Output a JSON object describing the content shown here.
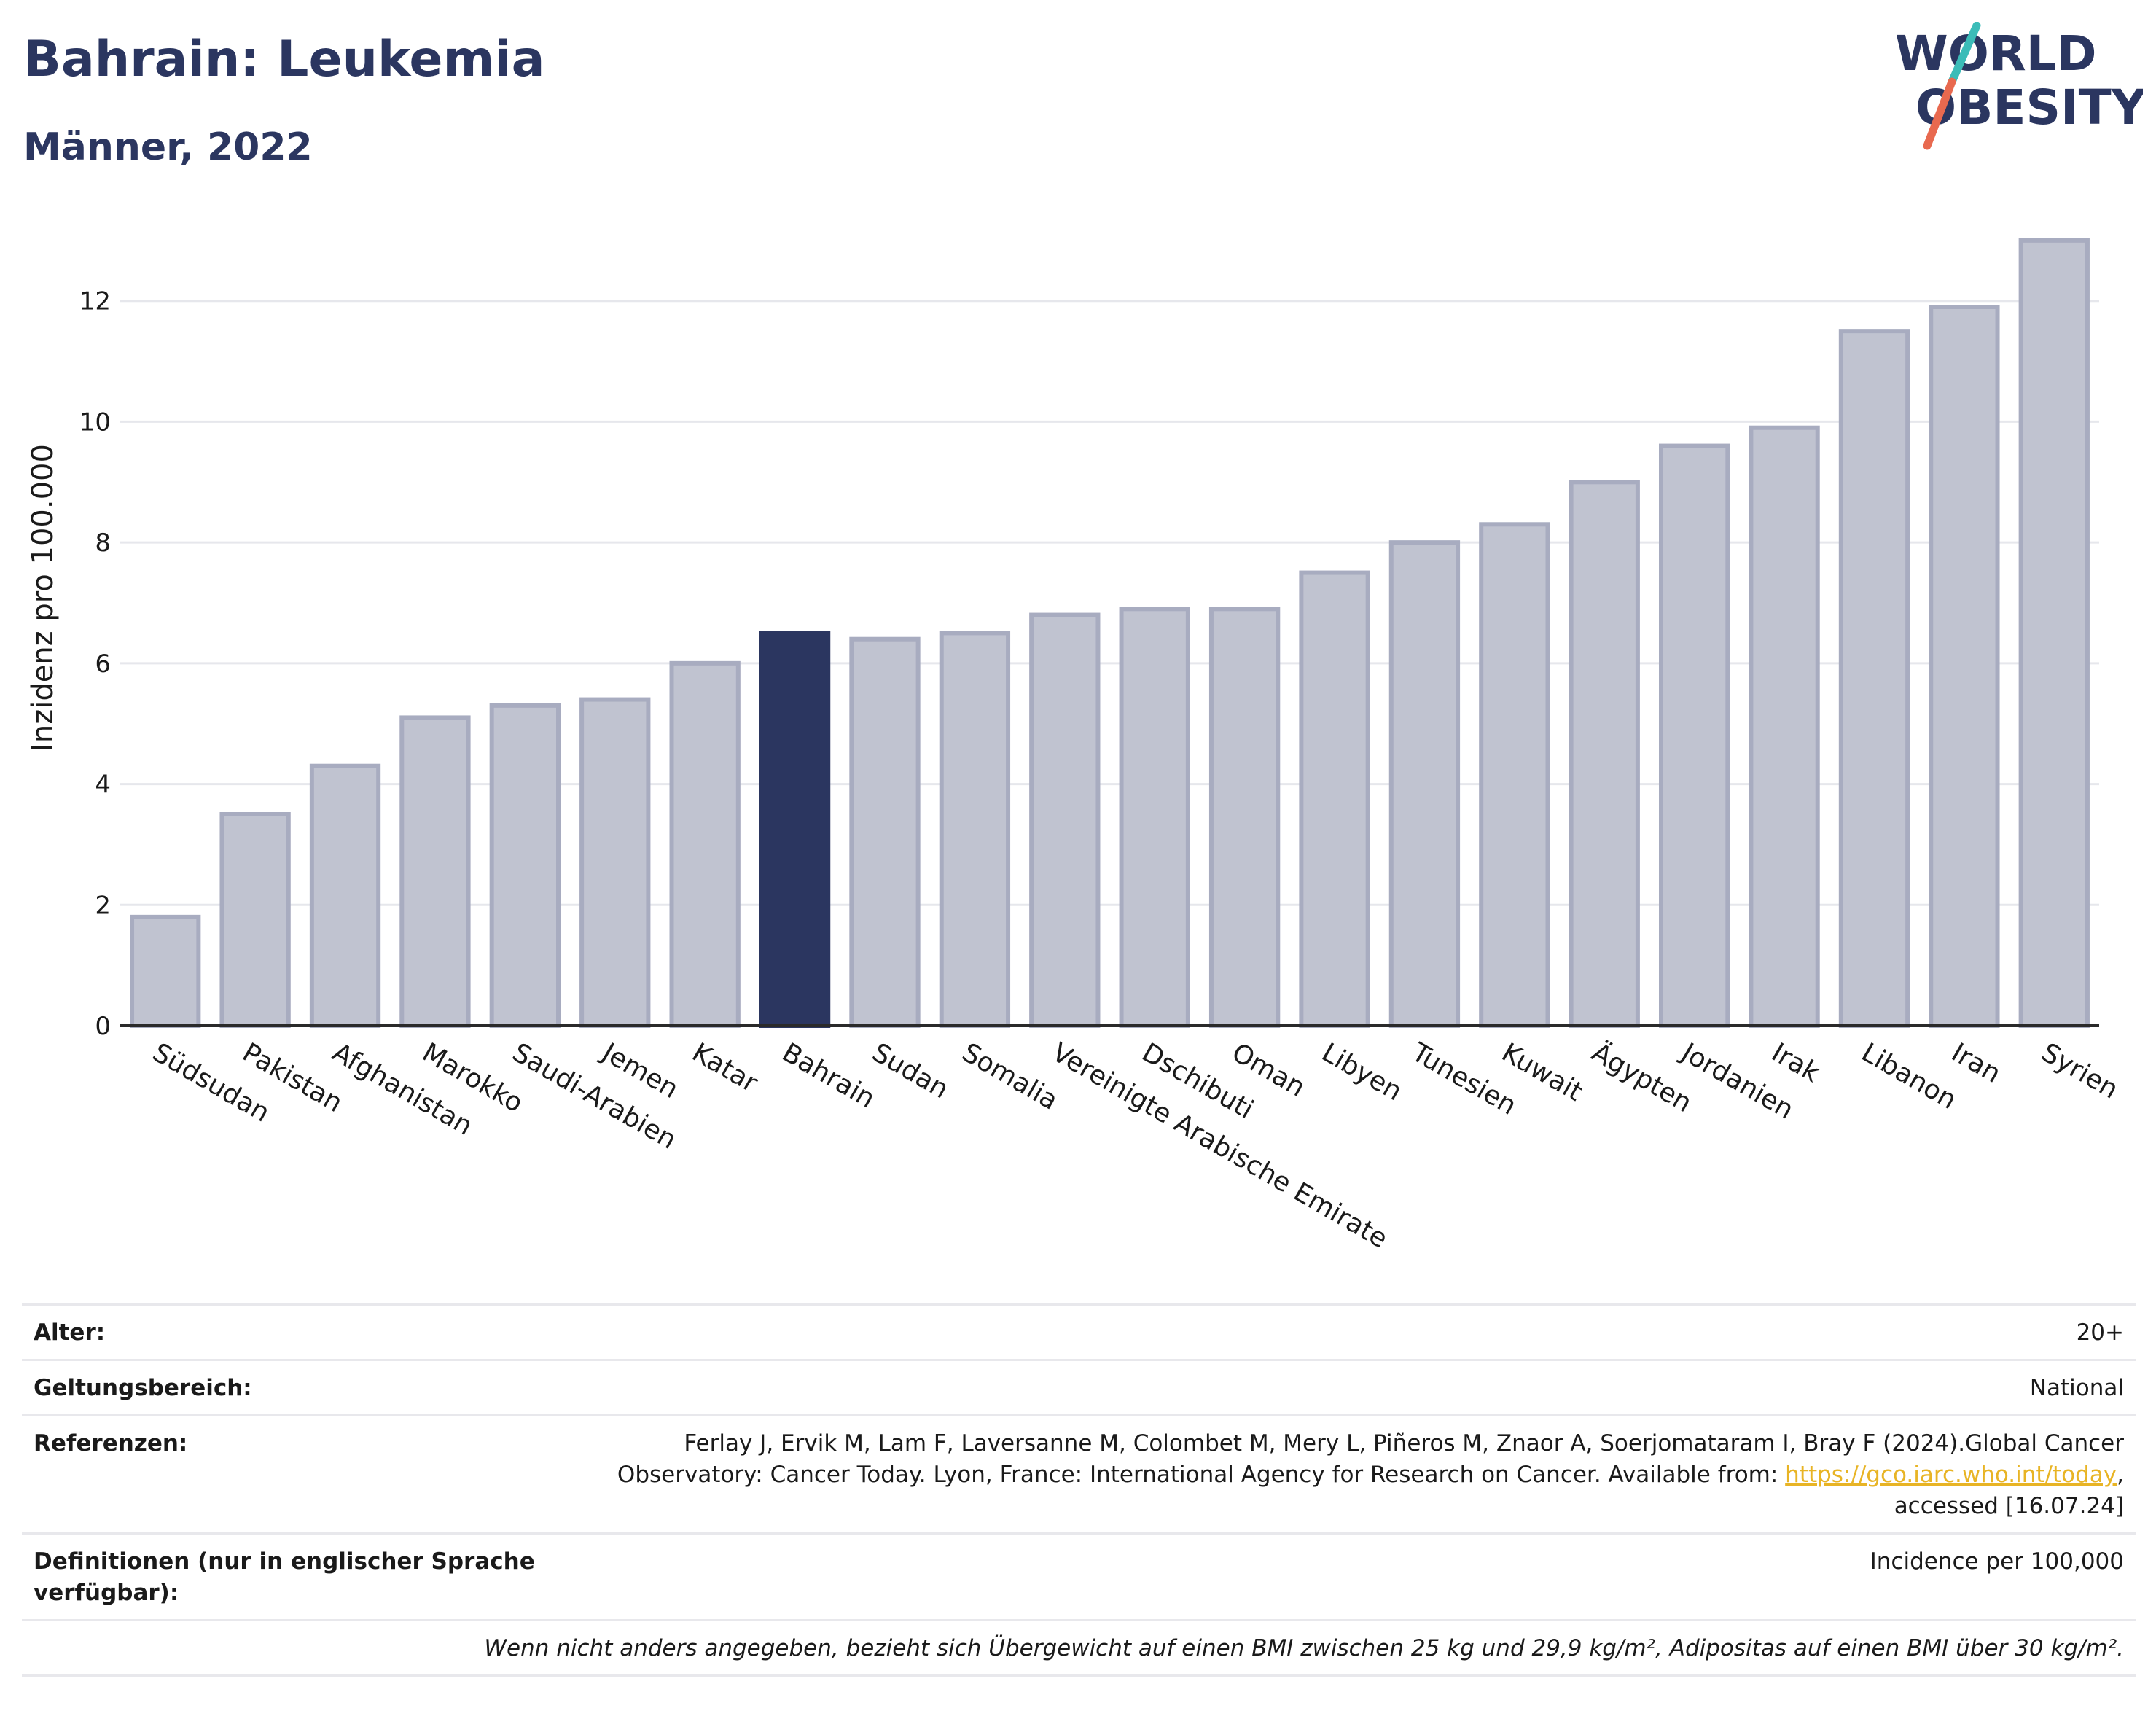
{
  "header": {
    "title": "Bahrain: Leukemia",
    "subtitle": "Männer, 2022"
  },
  "logo": {
    "line1": "WORLD",
    "line2": "OBESITY",
    "colors": {
      "text": "#2b3660",
      "slash_top": "#3bbcb8",
      "slash_bottom": "#e8694f"
    }
  },
  "colors": {
    "highlight": "#2b3660",
    "bar_fill": "#c0c3d0",
    "bar_stroke": "#a8acc0",
    "grid": "#e6e7ec",
    "axis": "#2a2a2a"
  },
  "chart_data": {
    "type": "bar",
    "title": "Bahrain: Leukemia",
    "subtitle": "Männer, 2022",
    "xlabel": "",
    "ylabel": "Inzidenz pro 100.000",
    "ylim": [
      0,
      13.3
    ],
    "yticks": [
      0,
      2,
      4,
      6,
      8,
      10,
      12
    ],
    "grid": true,
    "highlight": "Bahrain",
    "categories": [
      "Südsudan",
      "Pakistan",
      "Afghanistan",
      "Marokko",
      "Saudi-Arabien",
      "Jemen",
      "Katar",
      "Bahrain",
      "Sudan",
      "Somalia",
      "Vereinigte Arabische Emirate",
      "Dschibuti",
      "Oman",
      "Libyen",
      "Tunesien",
      "Kuwait",
      "Ägypten",
      "Jordanien",
      "Irak",
      "Libanon",
      "Iran",
      "Syrien"
    ],
    "values": [
      1.8,
      3.5,
      4.3,
      5.1,
      5.3,
      5.4,
      6.0,
      6.5,
      6.4,
      6.5,
      6.8,
      6.9,
      6.9,
      7.5,
      8.0,
      8.3,
      9.0,
      9.6,
      9.9,
      11.5,
      11.9,
      13.0
    ]
  },
  "info": {
    "age_label": "Alter:",
    "age_value": "20+",
    "scope_label": "Geltungsbereich:",
    "scope_value": "National",
    "refs_label": "Referenzen:",
    "refs_text_1": "Ferlay J, Ervik M, Lam F, Laversanne M, Colombet M, Mery L, Piñeros M, Znaor A, Soerjomataram I, Bray F (2024).Global Cancer Observatory: Cancer Today. Lyon, France: International Agency for Research on Cancer. Available from: ",
    "refs_link": "https://gco.iarc.who.int/today",
    "refs_text_2": ", accessed [16.07.24]",
    "defs_label": "Definitionen (nur in englischer Sprache verfügbar):",
    "defs_value": "Incidence per 100,000",
    "note": "Wenn nicht anders angegeben, bezieht sich Übergewicht auf einen BMI zwischen 25 kg und 29,9 kg/m², Adipositas auf einen BMI über 30 kg/m²."
  }
}
